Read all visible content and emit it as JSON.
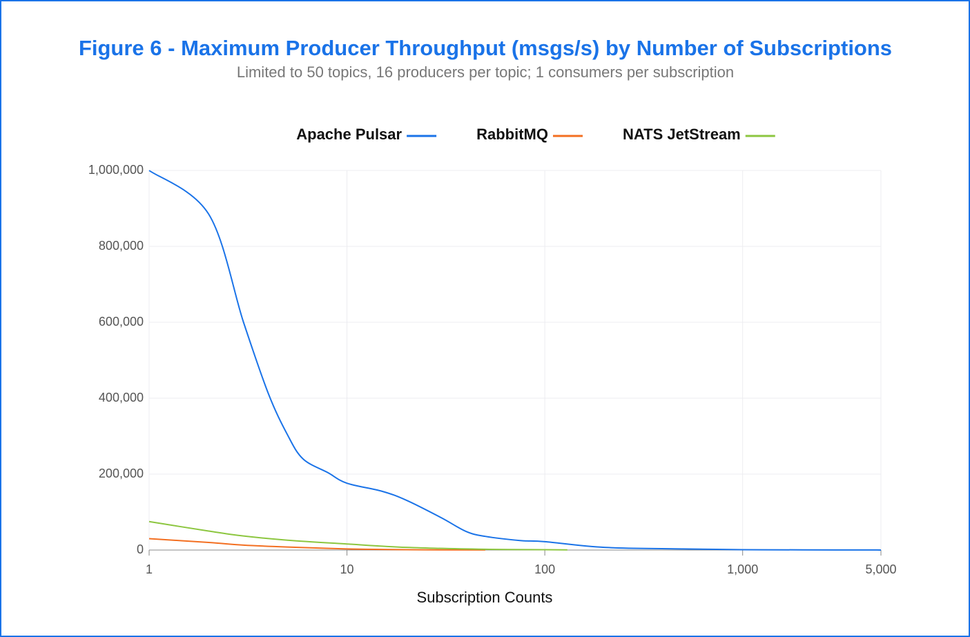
{
  "chart_data": {
    "type": "line",
    "title": "Figure 6 - Maximum Producer Throughput (msgs/s) by Number of Subscriptions",
    "subtitle": "Limited to 50 topics, 16 producers per topic; 1 consumers per subscription",
    "xlabel": "Subscription Counts",
    "xscale": "log",
    "grid": true,
    "legend": "top",
    "xlim": [
      1,
      5000
    ],
    "xticks": [
      1,
      10,
      100,
      {
        "value": 1000,
        "label": "1,000"
      },
      {
        "value": 5000,
        "label": "5,000"
      }
    ],
    "ylim": [
      0,
      1000000
    ],
    "yticks": [
      0,
      {
        "value": 200000,
        "label": "200,000"
      },
      {
        "value": 400000,
        "label": "400,000"
      },
      {
        "value": 600000,
        "label": "600,000"
      },
      {
        "value": 800000,
        "label": "800,000"
      },
      {
        "value": 1000000,
        "label": "1,000,000"
      }
    ],
    "series": [
      {
        "name": "Apache Pulsar",
        "color": "#1a73e8",
        "x": [
          1,
          2,
          3,
          4,
          5,
          6,
          8,
          10,
          15,
          20,
          30,
          40,
          50,
          75,
          100,
          200,
          500,
          1000,
          2000,
          5000
        ],
        "values": [
          1000000,
          885000,
          600000,
          413000,
          304000,
          240000,
          204000,
          176000,
          155000,
          131000,
          85000,
          49000,
          36000,
          25000,
          22000,
          7000,
          3000,
          1000,
          500,
          100
        ]
      },
      {
        "name": "RabbitMQ",
        "color": "#f36f21",
        "x": [
          1,
          2,
          3,
          5,
          10,
          20,
          50
        ],
        "values": [
          30000,
          20000,
          13000,
          8000,
          3000,
          800,
          200
        ]
      },
      {
        "name": "NATS JetStream",
        "color": "#8cc63f",
        "x": [
          1,
          2,
          3,
          5,
          10,
          20,
          50,
          100,
          130
        ],
        "values": [
          75000,
          50000,
          37000,
          26000,
          16000,
          7000,
          2000,
          1000,
          500
        ]
      }
    ]
  }
}
